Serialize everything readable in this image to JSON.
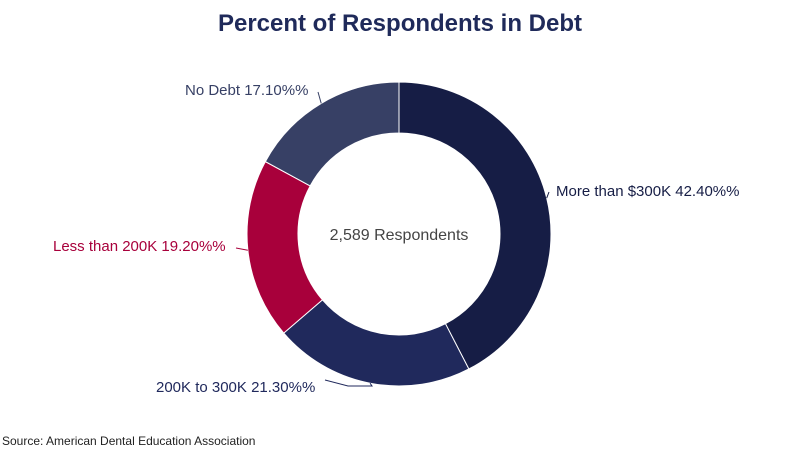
{
  "chart_data": {
    "type": "pie",
    "title": "Percent of Respondents in Debt",
    "center_text": "2,589 Respondents",
    "hole": true,
    "slices": [
      {
        "label": "More than $300K",
        "value_text": "42.40%%",
        "value": 42.4,
        "color": "#161d45"
      },
      {
        "label": "200K to 300K",
        "value_text": "21.30%%",
        "value": 21.3,
        "color": "#20295c"
      },
      {
        "label": "Less than 200K",
        "value_text": "19.20%%",
        "value": 19.2,
        "color": "#a8003b"
      },
      {
        "label": "No Debt",
        "value_text": "17.10%%",
        "value": 17.1,
        "color": "#374065"
      }
    ]
  },
  "footer": {
    "source": "Source: American Dental Education Association"
  }
}
